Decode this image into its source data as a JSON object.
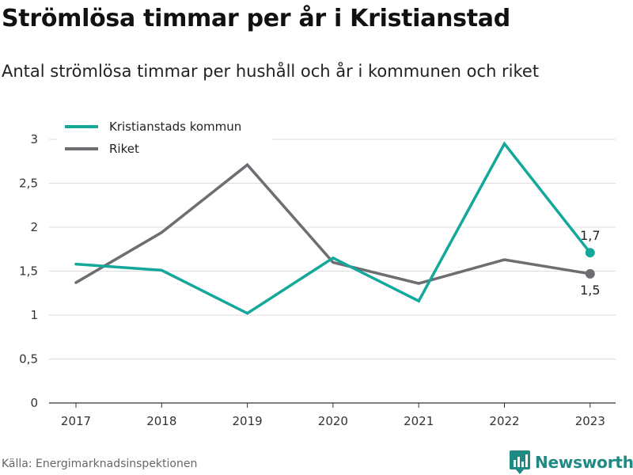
{
  "header": {
    "title": "Strömlösa timmar per år i Kristianstad",
    "subtitle": "Antal strömlösa timmar per hushåll och år i kommunen och riket"
  },
  "footer": {
    "source": "Källa: Energimarknadsinspektionen",
    "brand": "Newsworthy"
  },
  "colors": {
    "kommun": "#13a89a",
    "riket": "#6d6d72",
    "grid": "#dddddd",
    "axis": "#333333"
  },
  "chart_data": {
    "type": "line",
    "categories": [
      "2017",
      "2018",
      "2019",
      "2020",
      "2021",
      "2022",
      "2023"
    ],
    "series": [
      {
        "name": "Kristianstads kommun",
        "values": [
          1.58,
          1.51,
          1.02,
          1.65,
          1.16,
          2.95,
          1.71
        ],
        "end_label": "1,7"
      },
      {
        "name": "Riket",
        "values": [
          1.37,
          1.94,
          2.71,
          1.6,
          1.36,
          1.63,
          1.47
        ],
        "end_label": "1,5"
      }
    ],
    "yticks": [
      {
        "value": 0,
        "label": "0"
      },
      {
        "value": 0.5,
        "label": "0,5"
      },
      {
        "value": 1,
        "label": "1"
      },
      {
        "value": 1.5,
        "label": "1,5"
      },
      {
        "value": 2,
        "label": "2"
      },
      {
        "value": 2.5,
        "label": "2,5"
      },
      {
        "value": 3,
        "label": "3"
      }
    ],
    "ylim": [
      0,
      3
    ],
    "grid": true,
    "legend_position": "top-left"
  }
}
